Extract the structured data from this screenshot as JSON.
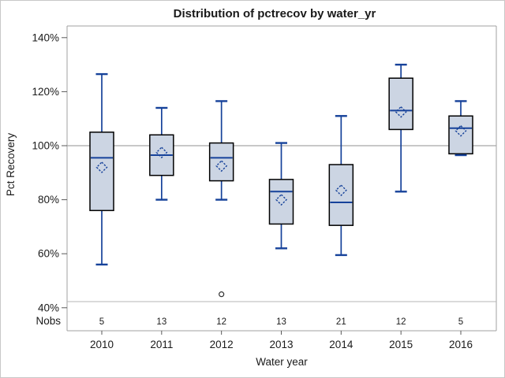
{
  "chart_data": {
    "type": "box",
    "title": "Distribution of pctrecov by water_yr",
    "xlabel": "Water year",
    "ylabel": "Pct Recovery",
    "row_label": "Nobs",
    "categories": [
      "2010",
      "2011",
      "2012",
      "2013",
      "2014",
      "2015",
      "2016"
    ],
    "nobs": [
      5,
      13,
      12,
      13,
      21,
      12,
      5
    ],
    "y_axis": {
      "min": 40,
      "max": 140,
      "step": 20,
      "unit": "%",
      "tick_labels": [
        "40%",
        "60%",
        "80%",
        "100%",
        "120%",
        "140%"
      ]
    },
    "reference_line": 100,
    "grid": false,
    "legend": false,
    "series": [
      {
        "category": "2010",
        "nobs": 5,
        "low": 56,
        "q1": 76,
        "median": 95.5,
        "q3": 105,
        "high": 126.5,
        "mean": 92,
        "outliers": []
      },
      {
        "category": "2011",
        "nobs": 13,
        "low": 80,
        "q1": 89,
        "median": 96.5,
        "q3": 104,
        "high": 114,
        "mean": 97.5,
        "outliers": []
      },
      {
        "category": "2012",
        "nobs": 12,
        "low": 80,
        "q1": 87,
        "median": 95.5,
        "q3": 101,
        "high": 116.5,
        "mean": 92.5,
        "outliers": [
          45
        ]
      },
      {
        "category": "2013",
        "nobs": 13,
        "low": 62,
        "q1": 71,
        "median": 83,
        "q3": 87.5,
        "high": 101,
        "mean": 80,
        "outliers": []
      },
      {
        "category": "2014",
        "nobs": 21,
        "low": 59.5,
        "q1": 70.5,
        "median": 79,
        "q3": 93,
        "high": 111,
        "mean": 83.5,
        "outliers": []
      },
      {
        "category": "2015",
        "nobs": 12,
        "low": 83,
        "q1": 106,
        "median": 113,
        "q3": 125,
        "high": 130,
        "mean": 112.5,
        "outliers": []
      },
      {
        "category": "2016",
        "nobs": 5,
        "low": 96.5,
        "q1": 97,
        "median": 106.5,
        "q3": 111,
        "high": 116.5,
        "mean": 105.5,
        "outliers": []
      }
    ]
  },
  "colors": {
    "box_fill": "#ccd5e3",
    "box_border": "#000000",
    "whisker_blue": "#16429a",
    "reference_line": "#a7a7a7",
    "frame": "#a0a0a0",
    "divider": "#b4b4b4",
    "tick": "#595959",
    "text": "#1a1a1a",
    "outlier": "#333333",
    "background": "#ffffff",
    "figure_border": "#c8c8c8"
  }
}
